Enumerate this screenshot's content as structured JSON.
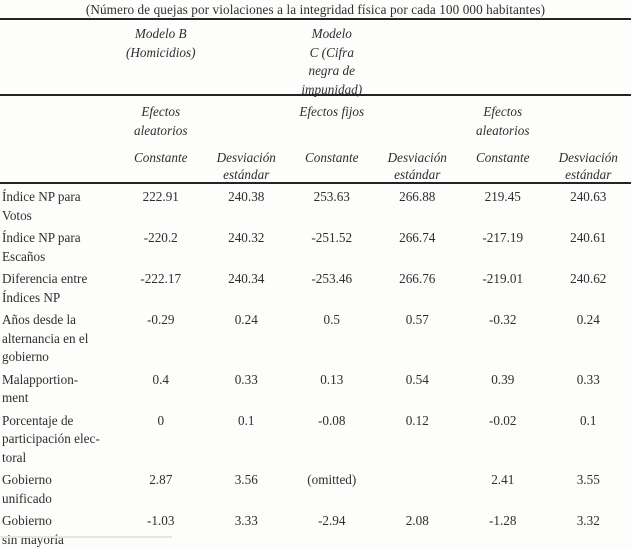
{
  "title": "(Número de quejas por violaciones a la integridad física por cada 100 000 habitantes)",
  "table": {
    "model_groups": [
      {
        "label": "Modelo B\n(Homicidios)"
      },
      {
        "label": "Modelo\nC (Cifra\nnegra de\nimpunidad)"
      }
    ],
    "effect_groups": [
      {
        "label": "Efectos\naleatorios"
      },
      {
        "label": "Efectos fijos"
      },
      {
        "label": "Efectos\naleatorios"
      }
    ],
    "column_headers": [
      "Constante",
      "Desviación\nestándar",
      "Constante",
      "Desviación\nestándar",
      "Constante",
      "Desviación\nestándar"
    ],
    "rows": [
      {
        "label": "Índice NP para\nVotos",
        "values": [
          "222.91",
          "240.38",
          "253.63",
          "266.88",
          "219.45",
          "240.63"
        ]
      },
      {
        "label": "Índice NP para\nEscaños",
        "values": [
          "-220.2",
          "240.32",
          "-251.52",
          "266.74",
          "-217.19",
          "240.61"
        ]
      },
      {
        "label": "Diferencia entre\nÍndices NP",
        "values": [
          "-222.17",
          "240.34",
          "-253.46",
          "266.76",
          "-219.01",
          "240.62"
        ]
      },
      {
        "label": "Años desde la\nalternancia en el\ngobierno",
        "values": [
          "-0.29",
          "0.24",
          "0.5",
          "0.57",
          "-0.32",
          "0.24"
        ]
      },
      {
        "label": "Malapportion-\nment",
        "values": [
          "0.4",
          "0.33",
          "0.13",
          "0.54",
          "0.39",
          "0.33"
        ]
      },
      {
        "label": "Porcentaje de\nparticipación elec-\ntoral",
        "values": [
          "0",
          "0.1",
          "-0.08",
          "0.12",
          "-0.02",
          "0.1"
        ]
      },
      {
        "label": "Gobierno\nunificado",
        "values": [
          "2.87",
          "3.56",
          "(omitted)",
          "",
          "2.41",
          "3.55"
        ]
      },
      {
        "label": "Gobierno\nsin mayoría",
        "values": [
          "-1.03",
          "3.33",
          "-2.94",
          "2.08",
          "-1.28",
          "3.32"
        ]
      }
    ]
  },
  "colors": {
    "text": "#2e2e2e",
    "rule": "#242424",
    "background": "#fdfdfc"
  }
}
